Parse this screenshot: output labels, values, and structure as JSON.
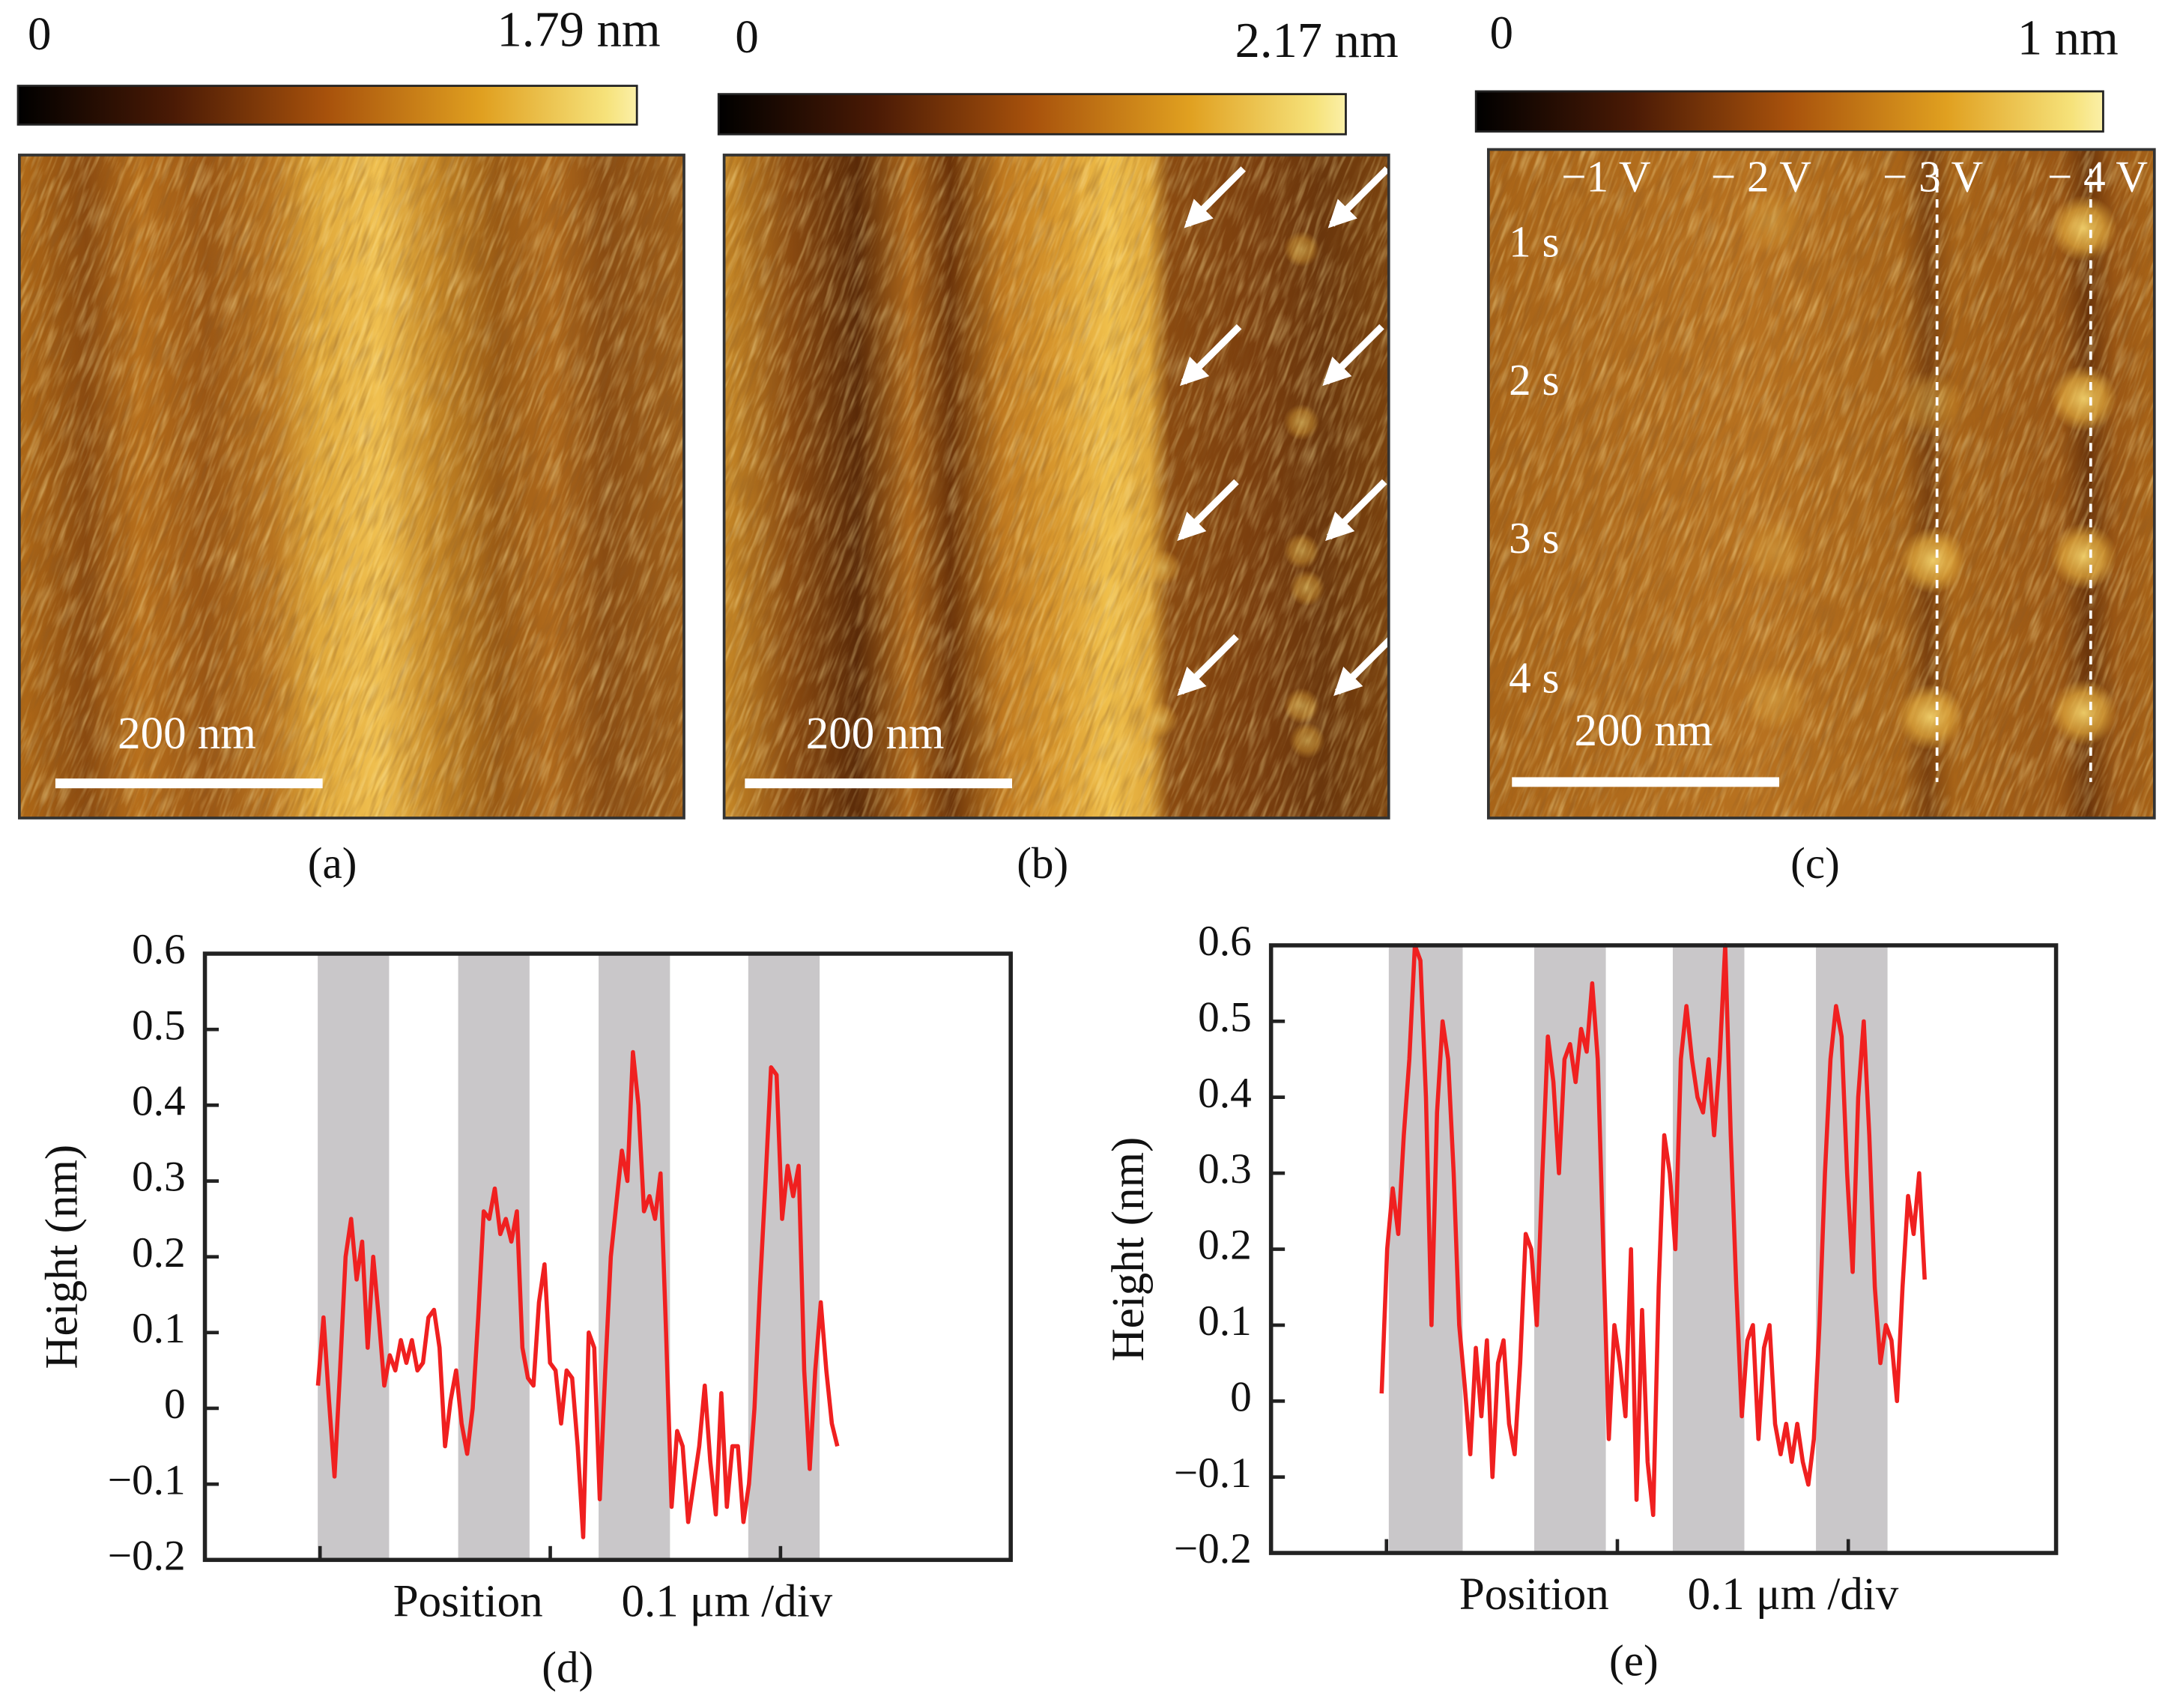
{
  "panels": [
    {
      "caption": "(a)",
      "colorbar_min": "0",
      "colorbar_max": "1.79 nm",
      "scale_bar": "200 nm"
    },
    {
      "caption": "(b)",
      "colorbar_min": "0",
      "colorbar_max": "2.17 nm",
      "scale_bar": "200 nm"
    },
    {
      "caption": "(c)",
      "colorbar_min": "0",
      "colorbar_max": "1 nm",
      "scale_bar": "200 nm",
      "column_labels": [
        "−1 V",
        "− 2 V",
        "− 3 V",
        "− 4 V"
      ],
      "row_labels": [
        "1 s",
        "2 s",
        "3 s",
        "4 s"
      ]
    }
  ],
  "chart_data": [
    {
      "type": "line",
      "caption": "(d)",
      "ylabel": "Height (nm)",
      "xlabel": "Position",
      "xscale_label": "0.1 μm /div",
      "color": "#f02020",
      "band_color": "#c9c7c9",
      "xlim": [
        0,
        0.35
      ],
      "xticks": [
        0.05,
        0.15,
        0.25
      ],
      "ylim": [
        -0.2,
        0.6
      ],
      "yticks": [
        {
          "value": -0.2,
          "label": "−0.2"
        },
        {
          "value": -0.1,
          "label": "−0.1"
        },
        0,
        0.1,
        0.2,
        0.3,
        0.4,
        0.5,
        0.6
      ],
      "highlight_bands": [
        [
          0.049,
          0.08
        ],
        [
          0.11,
          0.141
        ],
        [
          0.171,
          0.202
        ],
        [
          0.236,
          0.267
        ]
      ],
      "x": [
        0.0491,
        0.0515,
        0.0539,
        0.0563,
        0.0587,
        0.0611,
        0.0635,
        0.0659,
        0.0683,
        0.0707,
        0.0731,
        0.0755,
        0.0779,
        0.0803,
        0.0827,
        0.0851,
        0.0875,
        0.0899,
        0.0923,
        0.0947,
        0.0971,
        0.0995,
        0.1019,
        0.1043,
        0.1067,
        0.1091,
        0.1115,
        0.1139,
        0.1163,
        0.1187,
        0.1211,
        0.1235,
        0.1259,
        0.1283,
        0.1307,
        0.1331,
        0.1355,
        0.1379,
        0.1403,
        0.1427,
        0.1451,
        0.1475,
        0.1499,
        0.1523,
        0.1547,
        0.1571,
        0.1595,
        0.1619,
        0.1643,
        0.1667,
        0.1691,
        0.1715,
        0.1739,
        0.1763,
        0.1787,
        0.1811,
        0.1835,
        0.1859,
        0.1883,
        0.1907,
        0.1931,
        0.1955,
        0.1979,
        0.2003,
        0.2027,
        0.2051,
        0.2075,
        0.2099,
        0.2123,
        0.2147,
        0.2171,
        0.2195,
        0.2219,
        0.2243,
        0.2267,
        0.2291,
        0.2315,
        0.2339,
        0.2363,
        0.2387,
        0.2411,
        0.2435,
        0.2459,
        0.2483,
        0.2507,
        0.2531,
        0.2555,
        0.2579,
        0.2603,
        0.2627,
        0.2651,
        0.2675,
        0.2699,
        0.2723,
        0.2747
      ],
      "values": [
        0.03,
        0.12,
        0.01,
        -0.09,
        0.05,
        0.2,
        0.25,
        0.17,
        0.22,
        0.08,
        0.2,
        0.12,
        0.03,
        0.07,
        0.05,
        0.09,
        0.06,
        0.09,
        0.05,
        0.06,
        0.12,
        0.13,
        0.08,
        -0.05,
        0.01,
        0.05,
        -0.02,
        -0.06,
        0.0,
        0.12,
        0.26,
        0.25,
        0.29,
        0.23,
        0.25,
        0.22,
        0.26,
        0.08,
        0.04,
        0.03,
        0.14,
        0.19,
        0.06,
        0.05,
        -0.02,
        0.05,
        0.04,
        -0.05,
        -0.17,
        0.1,
        0.08,
        -0.12,
        0.05,
        0.2,
        0.27,
        0.34,
        0.3,
        0.47,
        0.4,
        0.26,
        0.28,
        0.25,
        0.31,
        0.1,
        -0.13,
        -0.03,
        -0.05,
        -0.15,
        -0.1,
        -0.05,
        0.03,
        -0.07,
        -0.14,
        0.02,
        -0.13,
        -0.05,
        -0.05,
        -0.15,
        -0.1,
        0.0,
        0.16,
        0.3,
        0.45,
        0.44,
        0.25,
        0.32,
        0.28,
        0.32,
        0.05,
        -0.08,
        0.05,
        0.14,
        0.05,
        -0.02,
        -0.05
      ]
    },
    {
      "type": "line",
      "caption": "(e)",
      "ylabel": "Height (nm)",
      "xlabel": "Position",
      "xscale_label": "0.1 μm /div",
      "color": "#f02020",
      "band_color": "#c9c7c9",
      "xlim": [
        0,
        0.34
      ],
      "xticks": [
        0.05,
        0.15,
        0.25
      ],
      "ylim": [
        -0.2,
        0.6
      ],
      "yticks": [
        {
          "value": -0.2,
          "label": "−0.2"
        },
        {
          "value": -0.1,
          "label": "−0.1"
        },
        0,
        0.1,
        0.2,
        0.3,
        0.4,
        0.5,
        0.6
      ],
      "highlight_bands": [
        [
          0.051,
          0.083
        ],
        [
          0.114,
          0.145
        ],
        [
          0.174,
          0.205
        ],
        [
          0.236,
          0.267
        ]
      ],
      "x": [
        0.0479,
        0.0503,
        0.0527,
        0.0551,
        0.0575,
        0.0599,
        0.0623,
        0.0647,
        0.0671,
        0.0695,
        0.0719,
        0.0743,
        0.0767,
        0.0791,
        0.0815,
        0.0839,
        0.0863,
        0.0887,
        0.0911,
        0.0935,
        0.0959,
        0.0983,
        0.1007,
        0.1031,
        0.1055,
        0.1079,
        0.1103,
        0.1127,
        0.1151,
        0.1175,
        0.1199,
        0.1223,
        0.1247,
        0.1271,
        0.1295,
        0.1319,
        0.1343,
        0.1367,
        0.1391,
        0.1415,
        0.1439,
        0.1463,
        0.1487,
        0.1511,
        0.1535,
        0.1559,
        0.1583,
        0.1607,
        0.1631,
        0.1655,
        0.1679,
        0.1703,
        0.1727,
        0.1751,
        0.1775,
        0.1799,
        0.1823,
        0.1847,
        0.1871,
        0.1895,
        0.1919,
        0.1943,
        0.1967,
        0.1991,
        0.2015,
        0.2039,
        0.2063,
        0.2087,
        0.2111,
        0.2135,
        0.2159,
        0.2183,
        0.2207,
        0.2231,
        0.2255,
        0.2279,
        0.2303,
        0.2327,
        0.2351,
        0.2375,
        0.2399,
        0.2423,
        0.2447,
        0.2471,
        0.2495,
        0.2519,
        0.2543,
        0.2567,
        0.2591,
        0.2615,
        0.2639,
        0.2663,
        0.2687,
        0.2711,
        0.2735,
        0.2759,
        0.2783,
        0.2807,
        0.2831
      ],
      "values": [
        0.01,
        0.2,
        0.28,
        0.22,
        0.35,
        0.45,
        0.6,
        0.58,
        0.4,
        0.1,
        0.38,
        0.5,
        0.45,
        0.3,
        0.1,
        0.02,
        -0.07,
        0.07,
        -0.02,
        0.08,
        -0.1,
        0.05,
        0.08,
        -0.03,
        -0.07,
        0.05,
        0.22,
        0.2,
        0.1,
        0.3,
        0.48,
        0.42,
        0.3,
        0.45,
        0.47,
        0.42,
        0.49,
        0.46,
        0.55,
        0.45,
        0.2,
        -0.05,
        0.1,
        0.05,
        -0.02,
        0.2,
        -0.13,
        0.12,
        -0.08,
        -0.15,
        0.15,
        0.35,
        0.3,
        0.2,
        0.45,
        0.52,
        0.45,
        0.4,
        0.38,
        0.45,
        0.35,
        0.45,
        0.6,
        0.35,
        0.15,
        -0.02,
        0.08,
        0.1,
        -0.05,
        0.07,
        0.1,
        -0.03,
        -0.07,
        -0.03,
        -0.08,
        -0.03,
        -0.08,
        -0.11,
        -0.05,
        0.1,
        0.3,
        0.45,
        0.52,
        0.48,
        0.3,
        0.17,
        0.4,
        0.5,
        0.35,
        0.15,
        0.05,
        0.1,
        0.08,
        0.0,
        0.15,
        0.27,
        0.22,
        0.3,
        0.16
      ]
    }
  ]
}
